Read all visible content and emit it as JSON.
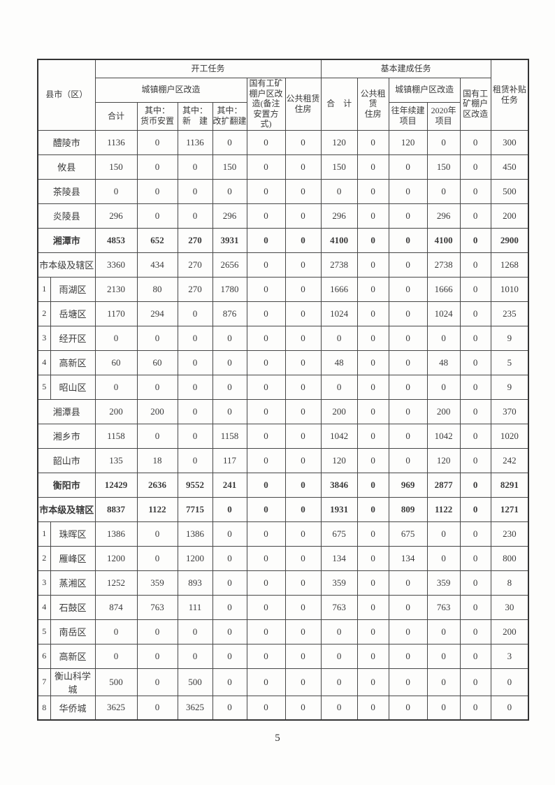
{
  "page": {
    "number": "5"
  },
  "table": {
    "header": {
      "county": "县市（区）",
      "start_tasks": "开工任务",
      "completion_tasks": "基本建成任务",
      "rental_subsidy": "租赁补贴\n任务",
      "shantytown_left": "城镇棚户区改造",
      "total_left": "合计",
      "monetary": "其中：\n货币安置",
      "new_build": "其中：\n新　建",
      "renovation": "其中：\n改扩翻建",
      "state_owned_left": "国有工矿\n棚户区改\n造(备注\n安置方\n式)",
      "public_rental_left": "公共租赁\n住房",
      "total_right": "合　计",
      "public_rental_right": "公共租赁\n住房",
      "shantytown_right": "城镇棚户区改造",
      "prev_year_projects": "往年续建\n项目",
      "year2020_projects": "2020年\n项目",
      "state_owned_right": "国有工\n矿棚户\n区改造"
    },
    "rows": [
      {
        "num": "",
        "name": "醴陵市",
        "bold": false,
        "values": [
          "1136",
          "0",
          "1136",
          "0",
          "0",
          "0",
          "120",
          "0",
          "120",
          "0",
          "0",
          "300"
        ]
      },
      {
        "num": "",
        "name": "攸县",
        "bold": false,
        "values": [
          "150",
          "0",
          "0",
          "150",
          "0",
          "0",
          "150",
          "0",
          "0",
          "150",
          "0",
          "450"
        ]
      },
      {
        "num": "",
        "name": "茶陵县",
        "bold": false,
        "values": [
          "0",
          "0",
          "0",
          "0",
          "0",
          "0",
          "0",
          "0",
          "0",
          "0",
          "0",
          "500"
        ]
      },
      {
        "num": "",
        "name": "炎陵县",
        "bold": false,
        "values": [
          "296",
          "0",
          "0",
          "296",
          "0",
          "0",
          "296",
          "0",
          "0",
          "296",
          "0",
          "200"
        ]
      },
      {
        "num": "",
        "name": "湘潭市",
        "bold": true,
        "values": [
          "4853",
          "652",
          "270",
          "3931",
          "0",
          "0",
          "4100",
          "0",
          "0",
          "4100",
          "0",
          "2900"
        ]
      },
      {
        "num": "",
        "name": "市本级及辖区",
        "bold": false,
        "values": [
          "3360",
          "434",
          "270",
          "2656",
          "0",
          "0",
          "2738",
          "0",
          "0",
          "2738",
          "0",
          "1268"
        ]
      },
      {
        "num": "1",
        "name": "雨湖区",
        "bold": false,
        "values": [
          "2130",
          "80",
          "270",
          "1780",
          "0",
          "0",
          "1666",
          "0",
          "0",
          "1666",
          "0",
          "1010"
        ]
      },
      {
        "num": "2",
        "name": "岳塘区",
        "bold": false,
        "values": [
          "1170",
          "294",
          "0",
          "876",
          "0",
          "0",
          "1024",
          "0",
          "0",
          "1024",
          "0",
          "235"
        ]
      },
      {
        "num": "3",
        "name": "经开区",
        "bold": false,
        "values": [
          "0",
          "0",
          "0",
          "0",
          "0",
          "0",
          "0",
          "0",
          "0",
          "0",
          "0",
          "9"
        ]
      },
      {
        "num": "4",
        "name": "高新区",
        "bold": false,
        "values": [
          "60",
          "60",
          "0",
          "0",
          "0",
          "0",
          "48",
          "0",
          "0",
          "48",
          "0",
          "5"
        ]
      },
      {
        "num": "5",
        "name": "昭山区",
        "bold": false,
        "values": [
          "0",
          "0",
          "0",
          "0",
          "0",
          "0",
          "0",
          "0",
          "0",
          "0",
          "0",
          "9"
        ]
      },
      {
        "num": "",
        "name": "湘潭县",
        "bold": false,
        "values": [
          "200",
          "200",
          "0",
          "0",
          "0",
          "0",
          "200",
          "0",
          "0",
          "200",
          "0",
          "370"
        ]
      },
      {
        "num": "",
        "name": "湘乡市",
        "bold": false,
        "values": [
          "1158",
          "0",
          "0",
          "1158",
          "0",
          "0",
          "1042",
          "0",
          "0",
          "1042",
          "0",
          "1020"
        ]
      },
      {
        "num": "",
        "name": "韶山市",
        "bold": false,
        "values": [
          "135",
          "18",
          "0",
          "117",
          "0",
          "0",
          "120",
          "0",
          "0",
          "120",
          "0",
          "242"
        ]
      },
      {
        "num": "",
        "name": "衡阳市",
        "bold": true,
        "values": [
          "12429",
          "2636",
          "9552",
          "241",
          "0",
          "0",
          "3846",
          "0",
          "969",
          "2877",
          "0",
          "8291"
        ]
      },
      {
        "num": "",
        "name": "市本级及辖区",
        "bold": true,
        "values": [
          "8837",
          "1122",
          "7715",
          "0",
          "0",
          "0",
          "1931",
          "0",
          "809",
          "1122",
          "0",
          "1271"
        ]
      },
      {
        "num": "1",
        "name": "珠晖区",
        "bold": false,
        "values": [
          "1386",
          "0",
          "1386",
          "0",
          "0",
          "0",
          "675",
          "0",
          "675",
          "0",
          "0",
          "230"
        ]
      },
      {
        "num": "2",
        "name": "雁峰区",
        "bold": false,
        "values": [
          "1200",
          "0",
          "1200",
          "0",
          "0",
          "0",
          "134",
          "0",
          "134",
          "0",
          "0",
          "800"
        ]
      },
      {
        "num": "3",
        "name": "蒸湘区",
        "bold": false,
        "values": [
          "1252",
          "359",
          "893",
          "0",
          "0",
          "0",
          "359",
          "0",
          "0",
          "359",
          "0",
          "8"
        ]
      },
      {
        "num": "4",
        "name": "石鼓区",
        "bold": false,
        "values": [
          "874",
          "763",
          "111",
          "0",
          "0",
          "0",
          "763",
          "0",
          "0",
          "763",
          "0",
          "30"
        ]
      },
      {
        "num": "5",
        "name": "南岳区",
        "bold": false,
        "values": [
          "0",
          "0",
          "0",
          "0",
          "0",
          "0",
          "0",
          "0",
          "0",
          "0",
          "0",
          "200"
        ]
      },
      {
        "num": "6",
        "name": "高新区",
        "bold": false,
        "values": [
          "0",
          "0",
          "0",
          "0",
          "0",
          "0",
          "0",
          "0",
          "0",
          "0",
          "0",
          "3"
        ]
      },
      {
        "num": "7",
        "name": "衡山科学城",
        "bold": false,
        "values": [
          "500",
          "0",
          "500",
          "0",
          "0",
          "0",
          "0",
          "0",
          "0",
          "0",
          "0",
          "0"
        ]
      },
      {
        "num": "8",
        "name": "华侨城",
        "bold": false,
        "values": [
          "3625",
          "0",
          "3625",
          "0",
          "0",
          "0",
          "0",
          "0",
          "0",
          "0",
          "0",
          "0"
        ]
      }
    ]
  }
}
